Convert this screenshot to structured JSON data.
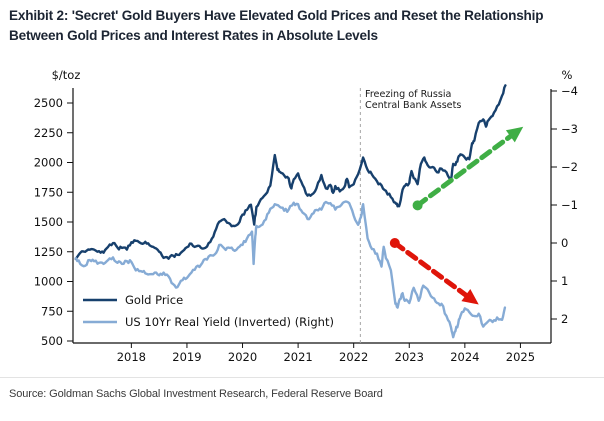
{
  "title": "Exhibit 2: 'Secret' Gold Buyers Have Elevated Gold Prices and Reset the Relationship Between Gold Prices and Interest Rates in Absolute Levels",
  "source": "Source: Goldman Sachs Global Investment Research, Federal Reserve Board",
  "chart_data": {
    "type": "line",
    "title": "Exhibit 2: 'Secret' Gold Buyers Have Elevated Gold Prices and Reset the Relationship Between Gold Prices and Interest Rates in Absolute Levels",
    "x_axis": {
      "range": [
        2016.95,
        2025.55
      ],
      "tick_years": [
        2018,
        2019,
        2020,
        2021,
        2022,
        2023,
        2024,
        2025
      ],
      "tick_labels": [
        "2018",
        "2019",
        "2020",
        "2021",
        "2022",
        "2023",
        "2024",
        "2025"
      ]
    },
    "y_left": {
      "label": "$/toz",
      "range": [
        500,
        2500
      ],
      "tick_values": [
        2500,
        2250,
        2000,
        1750,
        1500,
        1250,
        1000,
        750,
        500
      ],
      "tick_labels": [
        "2500",
        "2250",
        "2000",
        "1750",
        "1500",
        "1250",
        "1000",
        "750",
        "500"
      ]
    },
    "y_right": {
      "label": "%",
      "inverted": true,
      "range": [
        -4,
        2
      ],
      "tick_values": [
        -4,
        -3,
        -2,
        -1,
        0,
        1,
        2
      ],
      "tick_labels": [
        "−4",
        "−3",
        "−2",
        "−1",
        "0",
        "1",
        "2"
      ]
    },
    "legend": {
      "position": "lower-left-inside",
      "entries": [
        {
          "label": "Gold Price",
          "color": "#17406d"
        },
        {
          "label": "US 10Yr Real Yield (Inverted) (Right)",
          "color": "#86abd5"
        }
      ]
    },
    "event_line": {
      "year": 2022.12,
      "style": "dashed-gray",
      "label_lines": [
        "Freezing of Russia",
        "Central Bank Assets"
      ]
    },
    "arrows": [
      {
        "name": "gold-trend-arrow",
        "color": "#3fae45",
        "axis": "left",
        "from": [
          2023.15,
          1640
        ],
        "to": [
          2025.05,
          2300
        ]
      },
      {
        "name": "yield-trend-arrow",
        "color": "#df150a",
        "axis": "right",
        "from": [
          2022.74,
          0.0
        ],
        "to": [
          2024.25,
          1.62
        ]
      }
    ],
    "series": [
      {
        "name": "Gold Price",
        "axis": "left",
        "color": "#17406d",
        "width": 2.4,
        "points": [
          [
            2017.0,
            1190
          ],
          [
            2017.08,
            1240
          ],
          [
            2017.17,
            1250
          ],
          [
            2017.25,
            1267
          ],
          [
            2017.33,
            1268
          ],
          [
            2017.42,
            1255
          ],
          [
            2017.5,
            1242
          ],
          [
            2017.58,
            1290
          ],
          [
            2017.67,
            1323
          ],
          [
            2017.75,
            1285
          ],
          [
            2017.83,
            1282
          ],
          [
            2017.92,
            1268
          ],
          [
            2018.0,
            1330
          ],
          [
            2018.08,
            1342
          ],
          [
            2018.17,
            1322
          ],
          [
            2018.25,
            1334
          ],
          [
            2018.33,
            1303
          ],
          [
            2018.42,
            1282
          ],
          [
            2018.5,
            1250
          ],
          [
            2018.58,
            1198
          ],
          [
            2018.67,
            1192
          ],
          [
            2018.75,
            1218
          ],
          [
            2018.83,
            1224
          ],
          [
            2018.92,
            1254
          ],
          [
            2019.0,
            1288
          ],
          [
            2019.08,
            1318
          ],
          [
            2019.17,
            1296
          ],
          [
            2019.25,
            1284
          ],
          [
            2019.33,
            1282
          ],
          [
            2019.42,
            1332
          ],
          [
            2019.5,
            1415
          ],
          [
            2019.58,
            1502
          ],
          [
            2019.67,
            1524
          ],
          [
            2019.75,
            1492
          ],
          [
            2019.83,
            1468
          ],
          [
            2019.92,
            1482
          ],
          [
            2020.0,
            1562
          ],
          [
            2020.08,
            1602
          ],
          [
            2020.15,
            1645
          ],
          [
            2020.21,
            1478
          ],
          [
            2020.25,
            1625
          ],
          [
            2020.33,
            1692
          ],
          [
            2020.42,
            1735
          ],
          [
            2020.5,
            1805
          ],
          [
            2020.58,
            2062
          ],
          [
            2020.63,
            1938
          ],
          [
            2020.67,
            1922
          ],
          [
            2020.75,
            1892
          ],
          [
            2020.83,
            1866
          ],
          [
            2020.88,
            1782
          ],
          [
            2020.92,
            1858
          ],
          [
            2021.0,
            1908
          ],
          [
            2021.08,
            1812
          ],
          [
            2021.17,
            1722
          ],
          [
            2021.25,
            1732
          ],
          [
            2021.33,
            1782
          ],
          [
            2021.42,
            1895
          ],
          [
            2021.5,
            1782
          ],
          [
            2021.58,
            1812
          ],
          [
            2021.63,
            1745
          ],
          [
            2021.67,
            1802
          ],
          [
            2021.75,
            1757
          ],
          [
            2021.83,
            1792
          ],
          [
            2021.88,
            1862
          ],
          [
            2021.92,
            1792
          ],
          [
            2022.0,
            1818
          ],
          [
            2022.08,
            1902
          ],
          [
            2022.17,
            2042
          ],
          [
            2022.25,
            1938
          ],
          [
            2022.33,
            1898
          ],
          [
            2022.42,
            1842
          ],
          [
            2022.5,
            1808
          ],
          [
            2022.58,
            1762
          ],
          [
            2022.67,
            1708
          ],
          [
            2022.75,
            1662
          ],
          [
            2022.79,
            1632
          ],
          [
            2022.83,
            1652
          ],
          [
            2022.88,
            1772
          ],
          [
            2022.92,
            1802
          ],
          [
            2023.0,
            1828
          ],
          [
            2023.04,
            1928
          ],
          [
            2023.08,
            1868
          ],
          [
            2023.15,
            1818
          ],
          [
            2023.21,
            1988
          ],
          [
            2023.27,
            2042
          ],
          [
            2023.33,
            1978
          ],
          [
            2023.42,
            1962
          ],
          [
            2023.5,
            1918
          ],
          [
            2023.58,
            1948
          ],
          [
            2023.67,
            1918
          ],
          [
            2023.75,
            1852
          ],
          [
            2023.79,
            1988
          ],
          [
            2023.83,
            1978
          ],
          [
            2023.88,
            2042
          ],
          [
            2023.92,
            2068
          ],
          [
            2024.0,
            2042
          ],
          [
            2024.08,
            2028
          ],
          [
            2024.13,
            2162
          ],
          [
            2024.17,
            2182
          ],
          [
            2024.25,
            2332
          ],
          [
            2024.33,
            2362
          ],
          [
            2024.38,
            2302
          ],
          [
            2024.42,
            2352
          ],
          [
            2024.5,
            2392
          ],
          [
            2024.58,
            2472
          ],
          [
            2024.67,
            2562
          ],
          [
            2024.73,
            2648
          ]
        ]
      },
      {
        "name": "US 10Yr Real Yield (Inverted) (Right)",
        "axis": "right",
        "color": "#86abd5",
        "width": 2.4,
        "points": [
          [
            2017.0,
            0.4
          ],
          [
            2017.08,
            0.55
          ],
          [
            2017.17,
            0.6
          ],
          [
            2017.25,
            0.45
          ],
          [
            2017.33,
            0.48
          ],
          [
            2017.42,
            0.52
          ],
          [
            2017.5,
            0.55
          ],
          [
            2017.58,
            0.45
          ],
          [
            2017.67,
            0.38
          ],
          [
            2017.75,
            0.52
          ],
          [
            2017.83,
            0.55
          ],
          [
            2017.92,
            0.48
          ],
          [
            2018.0,
            0.5
          ],
          [
            2018.08,
            0.72
          ],
          [
            2018.17,
            0.74
          ],
          [
            2018.25,
            0.8
          ],
          [
            2018.33,
            0.82
          ],
          [
            2018.42,
            0.78
          ],
          [
            2018.5,
            0.85
          ],
          [
            2018.58,
            0.78
          ],
          [
            2018.67,
            0.88
          ],
          [
            2018.75,
            1.08
          ],
          [
            2018.83,
            1.16
          ],
          [
            2018.92,
            0.98
          ],
          [
            2019.0,
            0.92
          ],
          [
            2019.08,
            0.78
          ],
          [
            2019.17,
            0.62
          ],
          [
            2019.25,
            0.58
          ],
          [
            2019.33,
            0.42
          ],
          [
            2019.42,
            0.32
          ],
          [
            2019.5,
            0.3
          ],
          [
            2019.58,
            0.05
          ],
          [
            2019.67,
            0.14
          ],
          [
            2019.75,
            0.12
          ],
          [
            2019.83,
            0.18
          ],
          [
            2019.92,
            0.12
          ],
          [
            2020.0,
            0.05
          ],
          [
            2020.08,
            -0.12
          ],
          [
            2020.17,
            -0.3
          ],
          [
            2020.2,
            0.55
          ],
          [
            2020.23,
            -0.18
          ],
          [
            2020.25,
            -0.45
          ],
          [
            2020.33,
            -0.46
          ],
          [
            2020.42,
            -0.62
          ],
          [
            2020.5,
            -0.9
          ],
          [
            2020.58,
            -1.02
          ],
          [
            2020.67,
            -0.95
          ],
          [
            2020.75,
            -0.85
          ],
          [
            2020.83,
            -0.88
          ],
          [
            2020.92,
            -1.06
          ],
          [
            2021.0,
            -1.02
          ],
          [
            2021.08,
            -0.8
          ],
          [
            2021.17,
            -0.63
          ],
          [
            2021.25,
            -0.76
          ],
          [
            2021.33,
            -0.87
          ],
          [
            2021.42,
            -0.88
          ],
          [
            2021.5,
            -1.08
          ],
          [
            2021.58,
            -1.05
          ],
          [
            2021.67,
            -0.88
          ],
          [
            2021.75,
            -0.96
          ],
          [
            2021.83,
            -1.08
          ],
          [
            2021.92,
            -1.05
          ],
          [
            2022.0,
            -0.72
          ],
          [
            2022.08,
            -0.48
          ],
          [
            2022.13,
            -0.68
          ],
          [
            2022.17,
            -1.02
          ],
          [
            2022.25,
            -0.12
          ],
          [
            2022.33,
            0.16
          ],
          [
            2022.42,
            0.28
          ],
          [
            2022.5,
            0.62
          ],
          [
            2022.54,
            0.1
          ],
          [
            2022.58,
            0.4
          ],
          [
            2022.67,
            0.72
          ],
          [
            2022.75,
            1.6
          ],
          [
            2022.79,
            1.7
          ],
          [
            2022.83,
            1.48
          ],
          [
            2022.88,
            1.32
          ],
          [
            2022.92,
            1.52
          ],
          [
            2023.0,
            1.58
          ],
          [
            2023.08,
            1.18
          ],
          [
            2023.17,
            1.52
          ],
          [
            2023.25,
            1.12
          ],
          [
            2023.33,
            1.22
          ],
          [
            2023.42,
            1.44
          ],
          [
            2023.5,
            1.58
          ],
          [
            2023.58,
            1.6
          ],
          [
            2023.67,
            1.92
          ],
          [
            2023.75,
            2.22
          ],
          [
            2023.79,
            2.48
          ],
          [
            2023.83,
            2.32
          ],
          [
            2023.88,
            2.12
          ],
          [
            2023.92,
            1.92
          ],
          [
            2024.0,
            1.72
          ],
          [
            2024.08,
            1.82
          ],
          [
            2024.17,
            1.92
          ],
          [
            2024.25,
            1.86
          ],
          [
            2024.33,
            2.2
          ],
          [
            2024.42,
            2.06
          ],
          [
            2024.5,
            2.08
          ],
          [
            2024.58,
            1.96
          ],
          [
            2024.67,
            2.02
          ],
          [
            2024.72,
            1.7
          ]
        ]
      }
    ]
  }
}
